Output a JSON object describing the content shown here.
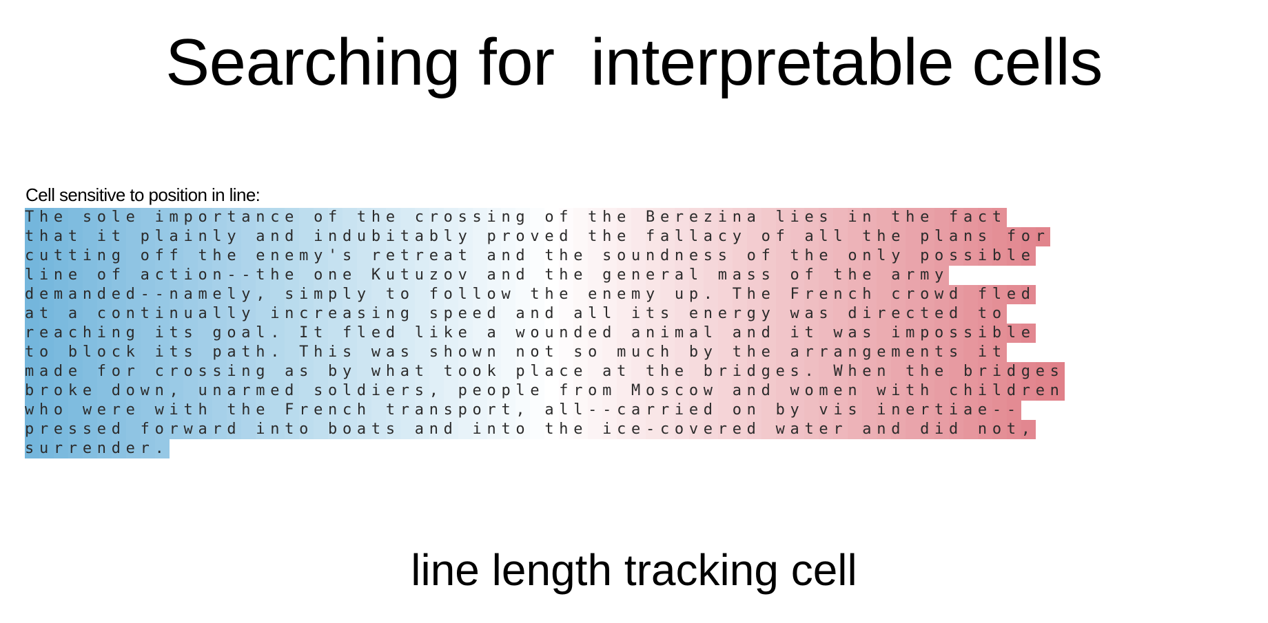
{
  "slide": {
    "title": "Searching for  interpretable cells",
    "caption": "line length tracking cell"
  },
  "figure": {
    "label": "Cell sensitive to position in line:",
    "colors": {
      "low": "#64aed8",
      "mid": "#ffffff",
      "high": "#dc6e78"
    },
    "lines": [
      "The sole importance of the crossing of the Berezina lies in the fact",
      "that it plainly and indubitably proved the fallacy of all the plans for",
      "cutting off the enemy's retreat and the soundness of the only possible",
      "line of action--the one Kutuzov and the general mass of the army",
      "demanded--namely, simply to follow the enemy up. The French crowd fled",
      "at a continually increasing speed and all its energy was directed to",
      "reaching its goal. It fled like a wounded animal and it was impossible",
      "to block its path. This was shown not so much by the arrangements it",
      "made for crossing as by what took place at the bridges. When the bridges",
      "broke down, unarmed soldiers, people from Moscow and women with children",
      "who were with the French transport, all--carried on by vis inertiae--",
      "pressed forward into boats and into the ice-covered water and did not,",
      "surrender."
    ]
  }
}
